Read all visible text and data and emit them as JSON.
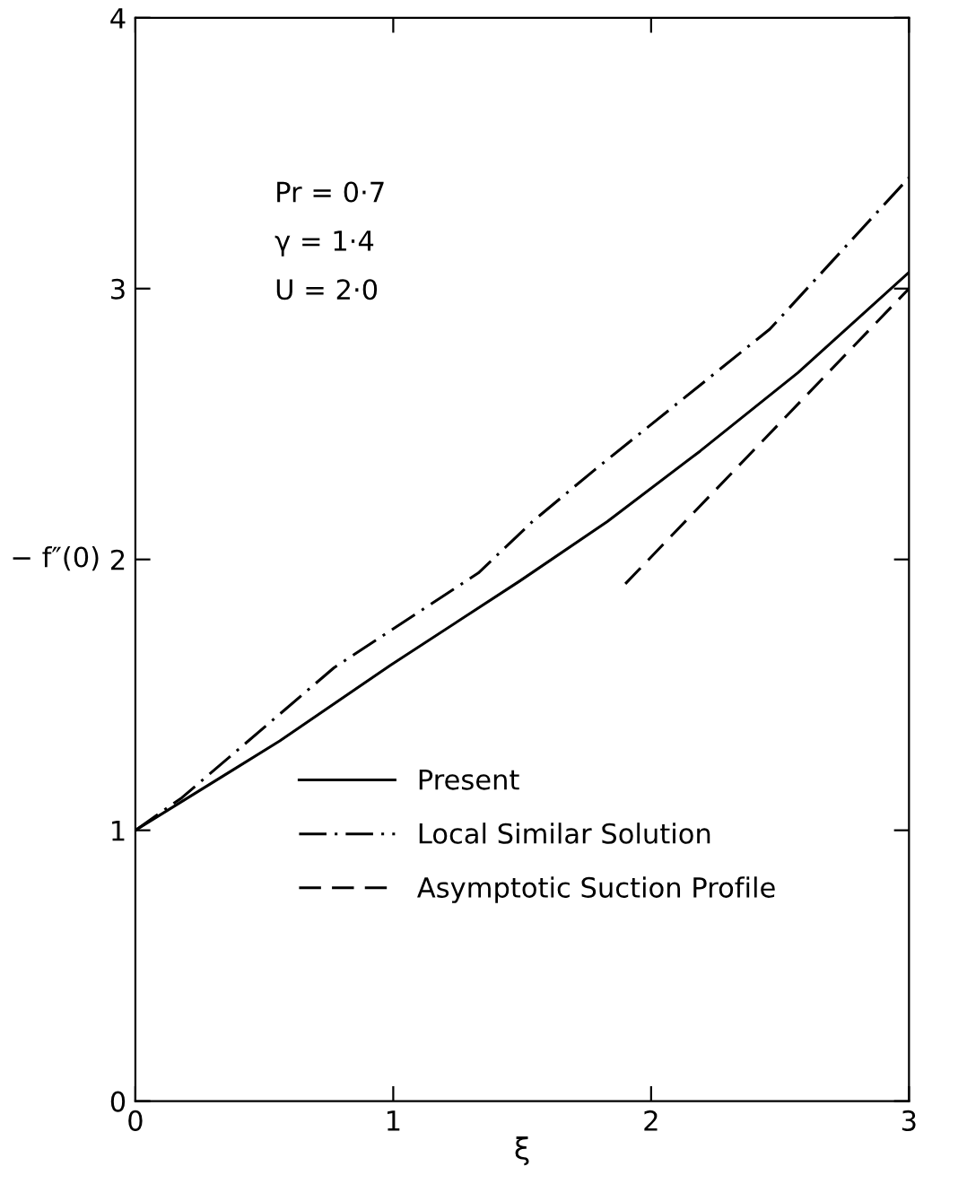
{
  "chart_data": {
    "type": "line",
    "xlabel": "ξ",
    "ylabel": "− f″(0)",
    "xlim": [
      0,
      3
    ],
    "ylim": [
      0,
      4
    ],
    "xticks": [
      0,
      1,
      2,
      3
    ],
    "yticks": [
      0,
      1,
      2,
      3,
      4
    ],
    "annotations": [
      "Pr = 0·7",
      "γ = 1·4",
      "U = 2·0"
    ],
    "legend": "bottom",
    "grid": false,
    "series": [
      {
        "name": "Present",
        "color": "#000000",
        "line_style": "solid",
        "x": [
          0,
          0.56,
          0.99,
          1.49,
          1.83,
          2.19,
          2.57,
          3
        ],
        "values": [
          1,
          1.33,
          1.61,
          1.92,
          2.14,
          2.4,
          2.69,
          3.06
        ]
      },
      {
        "name": "Local Similar Solution",
        "color": "#000000",
        "line_style": "dashdot",
        "x": [
          0,
          0.18,
          0.77,
          1.33,
          1.54,
          1.78,
          2.46,
          3
        ],
        "values": [
          1,
          1.12,
          1.6,
          1.95,
          2.14,
          2.33,
          2.85,
          3.41
        ]
      },
      {
        "name": "Asymptotic Suction Profile",
        "color": "#000000",
        "line_style": "dashed",
        "x": [
          1.9,
          3
        ],
        "values": [
          1.91,
          3.0
        ]
      }
    ]
  }
}
